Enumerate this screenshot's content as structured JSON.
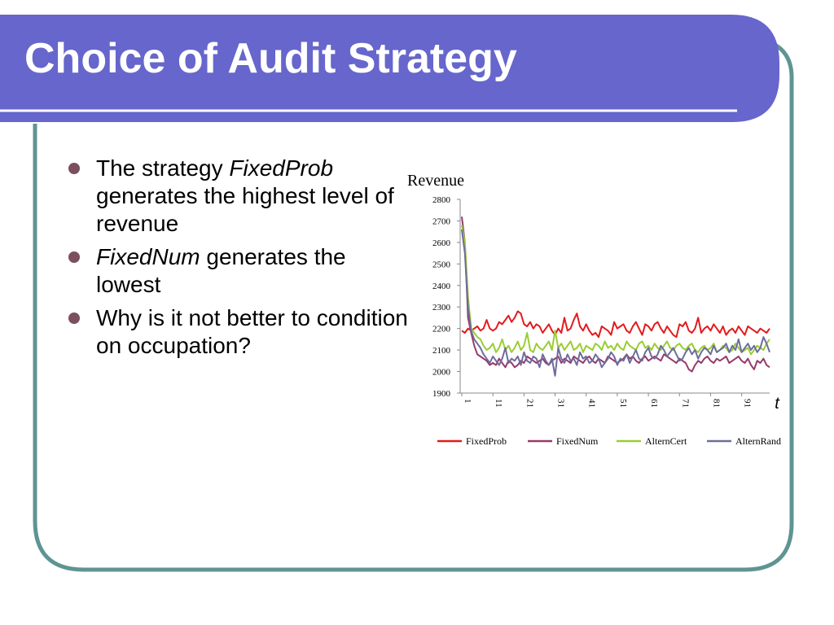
{
  "slide": {
    "title": "Choice of Audit Strategy",
    "bullets": [
      {
        "pre": "The strategy ",
        "em": "FixedProb",
        "post": " generates the highest level of revenue"
      },
      {
        "pre": "",
        "em": "FixedNum",
        "post": " generates the lowest"
      },
      {
        "pre": "Why is it not better to condition on occupation?",
        "em": "",
        "post": ""
      }
    ]
  },
  "theme": {
    "header": "#6666cc",
    "border": "#5f9494",
    "bullet": "#7b4f5e"
  },
  "chart_data": {
    "type": "line",
    "title": "",
    "ylabel": "Revenue",
    "xlabel": "t",
    "ylim": [
      1900,
      2800
    ],
    "yticks": [
      1900,
      2000,
      2100,
      2200,
      2300,
      2400,
      2500,
      2600,
      2700,
      2800
    ],
    "xticks": [
      1,
      11,
      21,
      31,
      41,
      51,
      61,
      71,
      81,
      91
    ],
    "xmax": 100,
    "legend": "bottom",
    "series": [
      {
        "name": "FixedProb",
        "color": "#e41a1c",
        "values": [
          2190,
          2180,
          2200,
          2190,
          2200,
          2210,
          2190,
          2200,
          2240,
          2200,
          2190,
          2200,
          2230,
          2220,
          2240,
          2260,
          2230,
          2250,
          2280,
          2270,
          2220,
          2210,
          2230,
          2200,
          2220,
          2210,
          2180,
          2200,
          2220,
          2190,
          2170,
          2200,
          2180,
          2250,
          2190,
          2200,
          2240,
          2270,
          2210,
          2190,
          2220,
          2190,
          2170,
          2180,
          2160,
          2210,
          2200,
          2190,
          2170,
          2230,
          2200,
          2210,
          2220,
          2190,
          2180,
          2210,
          2230,
          2200,
          2170,
          2220,
          2210,
          2190,
          2220,
          2230,
          2200,
          2180,
          2210,
          2190,
          2170,
          2160,
          2220,
          2210,
          2230,
          2190,
          2180,
          2200,
          2250,
          2180,
          2200,
          2210,
          2190,
          2220,
          2200,
          2180,
          2210,
          2170,
          2190,
          2200,
          2180,
          2210,
          2190,
          2170,
          2210,
          2200,
          2190,
          2180,
          2200,
          2190,
          2180,
          2200
        ]
      },
      {
        "name": "FixedNum",
        "color": "#963a6b",
        "values": [
          2720,
          2600,
          2250,
          2180,
          2120,
          2080,
          2070,
          2060,
          2050,
          2030,
          2040,
          2030,
          2060,
          2040,
          2020,
          2050,
          2040,
          2020,
          2030,
          2050,
          2040,
          2070,
          2060,
          2050,
          2040,
          2050,
          2060,
          2040,
          2030,
          2050,
          2060,
          2070,
          2040,
          2060,
          2050,
          2040,
          2070,
          2060,
          2050,
          2040,
          2060,
          2070,
          2050,
          2040,
          2060,
          2050,
          2040,
          2070,
          2060,
          2050,
          2040,
          2050,
          2060,
          2080,
          2060,
          2070,
          2050,
          2040,
          2060,
          2070,
          2050,
          2060,
          2070,
          2060,
          2050,
          2080,
          2070,
          2060,
          2050,
          2040,
          2060,
          2050,
          2040,
          2010,
          2000,
          2030,
          2050,
          2040,
          2060,
          2070,
          2050,
          2040,
          2060,
          2050,
          2060,
          2070,
          2040,
          2050,
          2060,
          2070,
          2050,
          2040,
          2060,
          2030,
          2010,
          2050,
          2040,
          2060,
          2030,
          2020
        ]
      },
      {
        "name": "AlternCert",
        "color": "#9acd32",
        "values": [
          2680,
          2600,
          2350,
          2200,
          2180,
          2160,
          2150,
          2120,
          2100,
          2110,
          2130,
          2090,
          2110,
          2150,
          2100,
          2120,
          2090,
          2110,
          2140,
          2100,
          2120,
          2180,
          2100,
          2090,
          2130,
          2110,
          2100,
          2120,
          2140,
          2100,
          2190,
          2110,
          2130,
          2100,
          2120,
          2140,
          2100,
          2110,
          2130,
          2090,
          2120,
          2110,
          2100,
          2130,
          2120,
          2100,
          2140,
          2110,
          2120,
          2100,
          2130,
          2110,
          2100,
          2140,
          2120,
          2110,
          2100,
          2130,
          2140,
          2110,
          2120,
          2100,
          2130,
          2110,
          2100,
          2120,
          2140,
          2110,
          2100,
          2120,
          2130,
          2110,
          2100,
          2120,
          2130,
          2100,
          2090,
          2110,
          2120,
          2100,
          2110,
          2130,
          2090,
          2100,
          2120,
          2110,
          2090,
          2100,
          2130,
          2110,
          2090,
          2100,
          2110,
          2080,
          2100,
          2120,
          2110,
          2100,
          2130,
          2150
        ]
      },
      {
        "name": "AlternRand",
        "color": "#6d6d9c",
        "values": [
          2660,
          2550,
          2300,
          2190,
          2150,
          2130,
          2110,
          2080,
          2060,
          2040,
          2070,
          2050,
          2030,
          2060,
          2110,
          2040,
          2060,
          2050,
          2070,
          2030,
          2090,
          2050,
          2040,
          2070,
          2060,
          2020,
          2080,
          2050,
          2030,
          2060,
          1980,
          2110,
          2060,
          2040,
          2080,
          2050,
          2060,
          2030,
          2090,
          2060,
          2070,
          2040,
          2050,
          2080,
          2060,
          2020,
          2040,
          2060,
          2090,
          2070,
          2030,
          2060,
          2050,
          2080,
          2040,
          2070,
          2100,
          2060,
          2050,
          2090,
          2110,
          2070,
          2060,
          2080,
          2120,
          2100,
          2070,
          2090,
          2110,
          2080,
          2050,
          2060,
          2090,
          2110,
          2080,
          2100,
          2060,
          2090,
          2110,
          2100,
          2080,
          2120,
          2090,
          2100,
          2110,
          2130,
          2090,
          2120,
          2100,
          2150,
          2090,
          2110,
          2130,
          2100,
          2120,
          2090,
          2110,
          2160,
          2130,
          2090
        ]
      }
    ]
  }
}
